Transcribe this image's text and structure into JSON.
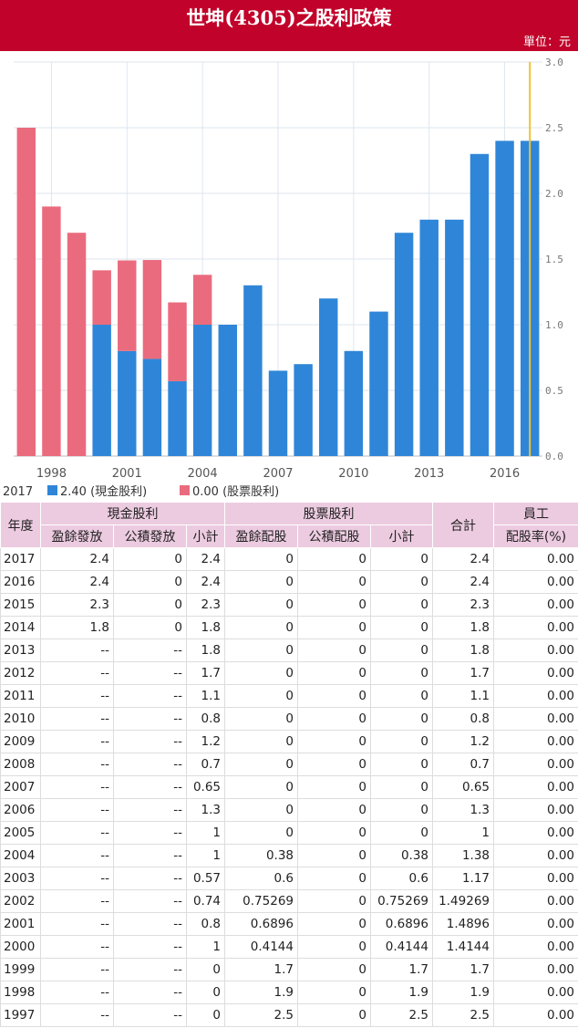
{
  "header": {
    "title": "世坤(4305)之股利政策",
    "unit": "單位：元"
  },
  "legend": {
    "year": "2017",
    "cash_label": "2.40 (現金股利)",
    "stock_label": "0.00 (股票股利)"
  },
  "colors": {
    "cash": "#2f86d8",
    "stock": "#ea6b7d",
    "marker": "#f1c232",
    "grid": "#dde6ee",
    "header_bg": "#c1022a",
    "table_header_bg": "#eccbe0"
  },
  "chart_data": {
    "type": "bar",
    "stacked": true,
    "categories": [
      "1997",
      "1998",
      "1999",
      "2000",
      "2001",
      "2002",
      "2003",
      "2004",
      "2005",
      "2006",
      "2007",
      "2008",
      "2009",
      "2010",
      "2011",
      "2012",
      "2013",
      "2014",
      "2015",
      "2016",
      "2017"
    ],
    "series": [
      {
        "name": "現金股利",
        "values": [
          0,
          0,
          0,
          1,
          0.8,
          0.74,
          0.57,
          1,
          1,
          1.3,
          0.65,
          0.7,
          1.2,
          0.8,
          1.1,
          1.7,
          1.8,
          1.8,
          2.3,
          2.4,
          2.4
        ]
      },
      {
        "name": "股票股利",
        "values": [
          2.5,
          1.9,
          1.7,
          0.4144,
          0.6896,
          0.75269,
          0.6,
          0.38,
          0,
          0,
          0,
          0,
          0,
          0,
          0,
          0,
          0,
          0,
          0,
          0,
          0
        ]
      }
    ],
    "x_tick_labels": [
      "1998",
      "2001",
      "2004",
      "2007",
      "2010",
      "2013",
      "2016"
    ],
    "y_tick_labels": [
      "0.0",
      "0.5",
      "1.0",
      "1.5",
      "2.0",
      "2.5",
      "3.0"
    ],
    "ylim": [
      0,
      3.0
    ],
    "highlight": "2017",
    "grid": true
  },
  "table": {
    "group_headers": {
      "year": "年度",
      "cash": "現金股利",
      "stock": "股票股利",
      "total": "合計",
      "employee": "員工",
      "employee2": "配股率(%)"
    },
    "sub_headers": [
      "盈餘發放",
      "公積發放",
      "小計",
      "盈餘配股",
      "公積配股",
      "小計"
    ],
    "rows": [
      [
        "2017",
        "2.4",
        "0",
        "2.4",
        "0",
        "0",
        "0",
        "2.4",
        "0.00"
      ],
      [
        "2016",
        "2.4",
        "0",
        "2.4",
        "0",
        "0",
        "0",
        "2.4",
        "0.00"
      ],
      [
        "2015",
        "2.3",
        "0",
        "2.3",
        "0",
        "0",
        "0",
        "2.3",
        "0.00"
      ],
      [
        "2014",
        "1.8",
        "0",
        "1.8",
        "0",
        "0",
        "0",
        "1.8",
        "0.00"
      ],
      [
        "2013",
        "--",
        "--",
        "1.8",
        "0",
        "0",
        "0",
        "1.8",
        "0.00"
      ],
      [
        "2012",
        "--",
        "--",
        "1.7",
        "0",
        "0",
        "0",
        "1.7",
        "0.00"
      ],
      [
        "2011",
        "--",
        "--",
        "1.1",
        "0",
        "0",
        "0",
        "1.1",
        "0.00"
      ],
      [
        "2010",
        "--",
        "--",
        "0.8",
        "0",
        "0",
        "0",
        "0.8",
        "0.00"
      ],
      [
        "2009",
        "--",
        "--",
        "1.2",
        "0",
        "0",
        "0",
        "1.2",
        "0.00"
      ],
      [
        "2008",
        "--",
        "--",
        "0.7",
        "0",
        "0",
        "0",
        "0.7",
        "0.00"
      ],
      [
        "2007",
        "--",
        "--",
        "0.65",
        "0",
        "0",
        "0",
        "0.65",
        "0.00"
      ],
      [
        "2006",
        "--",
        "--",
        "1.3",
        "0",
        "0",
        "0",
        "1.3",
        "0.00"
      ],
      [
        "2005",
        "--",
        "--",
        "1",
        "0",
        "0",
        "0",
        "1",
        "0.00"
      ],
      [
        "2004",
        "--",
        "--",
        "1",
        "0.38",
        "0",
        "0.38",
        "1.38",
        "0.00"
      ],
      [
        "2003",
        "--",
        "--",
        "0.57",
        "0.6",
        "0",
        "0.6",
        "1.17",
        "0.00"
      ],
      [
        "2002",
        "--",
        "--",
        "0.74",
        "0.75269",
        "0",
        "0.75269",
        "1.49269",
        "0.00"
      ],
      [
        "2001",
        "--",
        "--",
        "0.8",
        "0.6896",
        "0",
        "0.6896",
        "1.4896",
        "0.00"
      ],
      [
        "2000",
        "--",
        "--",
        "1",
        "0.4144",
        "0",
        "0.4144",
        "1.4144",
        "0.00"
      ],
      [
        "1999",
        "--",
        "--",
        "0",
        "1.7",
        "0",
        "1.7",
        "1.7",
        "0.00"
      ],
      [
        "1998",
        "--",
        "--",
        "0",
        "1.9",
        "0",
        "1.9",
        "1.9",
        "0.00"
      ],
      [
        "1997",
        "--",
        "--",
        "0",
        "2.5",
        "0",
        "2.5",
        "2.5",
        "0.00"
      ]
    ]
  }
}
